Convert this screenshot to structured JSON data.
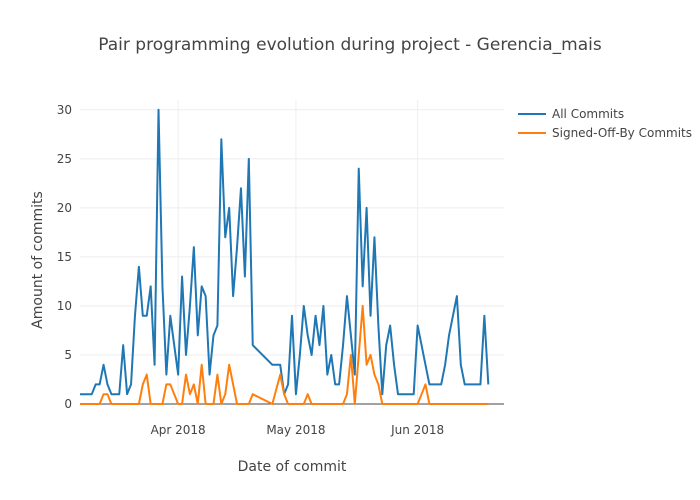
{
  "chart_data": {
    "type": "line",
    "title": "Pair programming evolution during project - Gerencia_mais",
    "xlabel": "Date of commit",
    "ylabel": "Amount of commits",
    "x_start": "2018-03-07",
    "x_end": "2018-06-23",
    "ylim": [
      0,
      31
    ],
    "yticks": [
      0,
      5,
      10,
      15,
      20,
      25,
      30
    ],
    "xticks": [
      {
        "date": "2018-04-01",
        "label": "Apr 2018"
      },
      {
        "date": "2018-05-01",
        "label": "May 2018"
      },
      {
        "date": "2018-06-01",
        "label": "Jun 2018"
      }
    ],
    "grid": true,
    "legend_position": "top-right",
    "series": [
      {
        "name": "All Commits",
        "color": "#1f77b4",
        "points": [
          [
            "2018-03-07",
            1
          ],
          [
            "2018-03-08",
            1
          ],
          [
            "2018-03-09",
            1
          ],
          [
            "2018-03-10",
            1
          ],
          [
            "2018-03-11",
            2
          ],
          [
            "2018-03-12",
            2
          ],
          [
            "2018-03-13",
            4
          ],
          [
            "2018-03-14",
            2
          ],
          [
            "2018-03-15",
            1
          ],
          [
            "2018-03-16",
            1
          ],
          [
            "2018-03-17",
            1
          ],
          [
            "2018-03-18",
            6
          ],
          [
            "2018-03-19",
            1
          ],
          [
            "2018-03-20",
            2
          ],
          [
            "2018-03-21",
            9
          ],
          [
            "2018-03-22",
            14
          ],
          [
            "2018-03-23",
            9
          ],
          [
            "2018-03-24",
            9
          ],
          [
            "2018-03-25",
            12
          ],
          [
            "2018-03-26",
            4
          ],
          [
            "2018-03-27",
            30
          ],
          [
            "2018-03-28",
            12
          ],
          [
            "2018-03-29",
            3
          ],
          [
            "2018-03-30",
            9
          ],
          [
            "2018-03-31",
            6
          ],
          [
            "2018-04-01",
            3
          ],
          [
            "2018-04-02",
            13
          ],
          [
            "2018-04-03",
            5
          ],
          [
            "2018-04-04",
            10
          ],
          [
            "2018-04-05",
            16
          ],
          [
            "2018-04-06",
            7
          ],
          [
            "2018-04-07",
            12
          ],
          [
            "2018-04-08",
            11
          ],
          [
            "2018-04-09",
            3
          ],
          [
            "2018-04-10",
            7
          ],
          [
            "2018-04-11",
            8
          ],
          [
            "2018-04-12",
            27
          ],
          [
            "2018-04-13",
            17
          ],
          [
            "2018-04-14",
            20
          ],
          [
            "2018-04-15",
            11
          ],
          [
            "2018-04-16",
            16
          ],
          [
            "2018-04-17",
            22
          ],
          [
            "2018-04-18",
            13
          ],
          [
            "2018-04-19",
            25
          ],
          [
            "2018-04-20",
            6
          ],
          [
            "2018-04-25",
            4
          ],
          [
            "2018-04-27",
            4
          ],
          [
            "2018-04-28",
            1
          ],
          [
            "2018-04-29",
            2
          ],
          [
            "2018-04-30",
            9
          ],
          [
            "2018-05-01",
            1
          ],
          [
            "2018-05-02",
            5
          ],
          [
            "2018-05-03",
            10
          ],
          [
            "2018-05-04",
            7
          ],
          [
            "2018-05-05",
            5
          ],
          [
            "2018-05-06",
            9
          ],
          [
            "2018-05-07",
            6
          ],
          [
            "2018-05-08",
            10
          ],
          [
            "2018-05-09",
            3
          ],
          [
            "2018-05-10",
            5
          ],
          [
            "2018-05-11",
            2
          ],
          [
            "2018-05-12",
            2
          ],
          [
            "2018-05-13",
            6
          ],
          [
            "2018-05-14",
            11
          ],
          [
            "2018-05-15",
            7
          ],
          [
            "2018-05-16",
            3
          ],
          [
            "2018-05-17",
            24
          ],
          [
            "2018-05-18",
            12
          ],
          [
            "2018-05-19",
            20
          ],
          [
            "2018-05-20",
            9
          ],
          [
            "2018-05-21",
            17
          ],
          [
            "2018-05-22",
            8
          ],
          [
            "2018-05-23",
            1
          ],
          [
            "2018-05-24",
            6
          ],
          [
            "2018-05-25",
            8
          ],
          [
            "2018-05-26",
            4
          ],
          [
            "2018-05-27",
            1
          ],
          [
            "2018-05-28",
            1
          ],
          [
            "2018-05-29",
            1
          ],
          [
            "2018-05-30",
            1
          ],
          [
            "2018-05-31",
            1
          ],
          [
            "2018-06-01",
            8
          ],
          [
            "2018-06-02",
            6
          ],
          [
            "2018-06-03",
            4
          ],
          [
            "2018-06-04",
            2
          ],
          [
            "2018-06-05",
            2
          ],
          [
            "2018-06-06",
            2
          ],
          [
            "2018-06-07",
            2
          ],
          [
            "2018-06-08",
            4
          ],
          [
            "2018-06-09",
            7
          ],
          [
            "2018-06-10",
            9
          ],
          [
            "2018-06-11",
            11
          ],
          [
            "2018-06-12",
            4
          ],
          [
            "2018-06-13",
            2
          ],
          [
            "2018-06-14",
            2
          ],
          [
            "2018-06-15",
            2
          ],
          [
            "2018-06-16",
            2
          ],
          [
            "2018-06-17",
            2
          ],
          [
            "2018-06-18",
            9
          ],
          [
            "2018-06-19",
            2
          ]
        ]
      },
      {
        "name": "Signed-Off-By Commits",
        "color": "#ff7f0e",
        "points": [
          [
            "2018-03-07",
            0
          ],
          [
            "2018-03-08",
            0
          ],
          [
            "2018-03-09",
            0
          ],
          [
            "2018-03-10",
            0
          ],
          [
            "2018-03-11",
            0
          ],
          [
            "2018-03-12",
            0
          ],
          [
            "2018-03-13",
            1
          ],
          [
            "2018-03-14",
            1
          ],
          [
            "2018-03-15",
            0
          ],
          [
            "2018-03-16",
            0
          ],
          [
            "2018-03-17",
            0
          ],
          [
            "2018-03-18",
            0
          ],
          [
            "2018-03-19",
            0
          ],
          [
            "2018-03-20",
            0
          ],
          [
            "2018-03-21",
            0
          ],
          [
            "2018-03-22",
            0
          ],
          [
            "2018-03-23",
            2
          ],
          [
            "2018-03-24",
            3
          ],
          [
            "2018-03-25",
            0
          ],
          [
            "2018-03-26",
            0
          ],
          [
            "2018-03-27",
            0
          ],
          [
            "2018-03-28",
            0
          ],
          [
            "2018-03-29",
            2
          ],
          [
            "2018-03-30",
            2
          ],
          [
            "2018-03-31",
            1
          ],
          [
            "2018-04-01",
            0
          ],
          [
            "2018-04-02",
            0
          ],
          [
            "2018-04-03",
            3
          ],
          [
            "2018-04-04",
            1
          ],
          [
            "2018-04-05",
            2
          ],
          [
            "2018-04-06",
            0
          ],
          [
            "2018-04-07",
            4
          ],
          [
            "2018-04-08",
            0
          ],
          [
            "2018-04-09",
            0
          ],
          [
            "2018-04-10",
            0
          ],
          [
            "2018-04-11",
            3
          ],
          [
            "2018-04-12",
            0
          ],
          [
            "2018-04-13",
            1
          ],
          [
            "2018-04-14",
            4
          ],
          [
            "2018-04-15",
            2
          ],
          [
            "2018-04-16",
            0
          ],
          [
            "2018-04-17",
            0
          ],
          [
            "2018-04-18",
            0
          ],
          [
            "2018-04-19",
            0
          ],
          [
            "2018-04-20",
            1
          ],
          [
            "2018-04-25",
            0
          ],
          [
            "2018-04-27",
            3
          ],
          [
            "2018-04-28",
            1
          ],
          [
            "2018-04-29",
            0
          ],
          [
            "2018-04-30",
            0
          ],
          [
            "2018-05-01",
            0
          ],
          [
            "2018-05-02",
            0
          ],
          [
            "2018-05-03",
            0
          ],
          [
            "2018-05-04",
            1
          ],
          [
            "2018-05-05",
            0
          ],
          [
            "2018-05-06",
            0
          ],
          [
            "2018-05-07",
            0
          ],
          [
            "2018-05-08",
            0
          ],
          [
            "2018-05-09",
            0
          ],
          [
            "2018-05-10",
            0
          ],
          [
            "2018-05-11",
            0
          ],
          [
            "2018-05-12",
            0
          ],
          [
            "2018-05-13",
            0
          ],
          [
            "2018-05-14",
            1
          ],
          [
            "2018-05-15",
            5
          ],
          [
            "2018-05-16",
            0
          ],
          [
            "2018-05-17",
            5
          ],
          [
            "2018-05-18",
            10
          ],
          [
            "2018-05-19",
            4
          ],
          [
            "2018-05-20",
            5
          ],
          [
            "2018-05-21",
            3
          ],
          [
            "2018-05-22",
            2
          ],
          [
            "2018-05-23",
            0
          ],
          [
            "2018-05-24",
            0
          ],
          [
            "2018-05-25",
            0
          ],
          [
            "2018-05-26",
            0
          ],
          [
            "2018-05-27",
            0
          ],
          [
            "2018-05-28",
            0
          ],
          [
            "2018-05-29",
            0
          ],
          [
            "2018-05-30",
            0
          ],
          [
            "2018-05-31",
            0
          ],
          [
            "2018-06-01",
            0
          ],
          [
            "2018-06-02",
            1
          ],
          [
            "2018-06-03",
            2
          ],
          [
            "2018-06-04",
            0
          ],
          [
            "2018-06-05",
            0
          ],
          [
            "2018-06-06",
            0
          ],
          [
            "2018-06-07",
            0
          ],
          [
            "2018-06-08",
            0
          ],
          [
            "2018-06-09",
            0
          ],
          [
            "2018-06-10",
            0
          ],
          [
            "2018-06-11",
            0
          ],
          [
            "2018-06-12",
            0
          ],
          [
            "2018-06-13",
            0
          ],
          [
            "2018-06-14",
            0
          ],
          [
            "2018-06-15",
            0
          ],
          [
            "2018-06-16",
            0
          ],
          [
            "2018-06-17",
            0
          ],
          [
            "2018-06-18",
            0
          ],
          [
            "2018-06-19",
            0
          ]
        ]
      }
    ]
  }
}
